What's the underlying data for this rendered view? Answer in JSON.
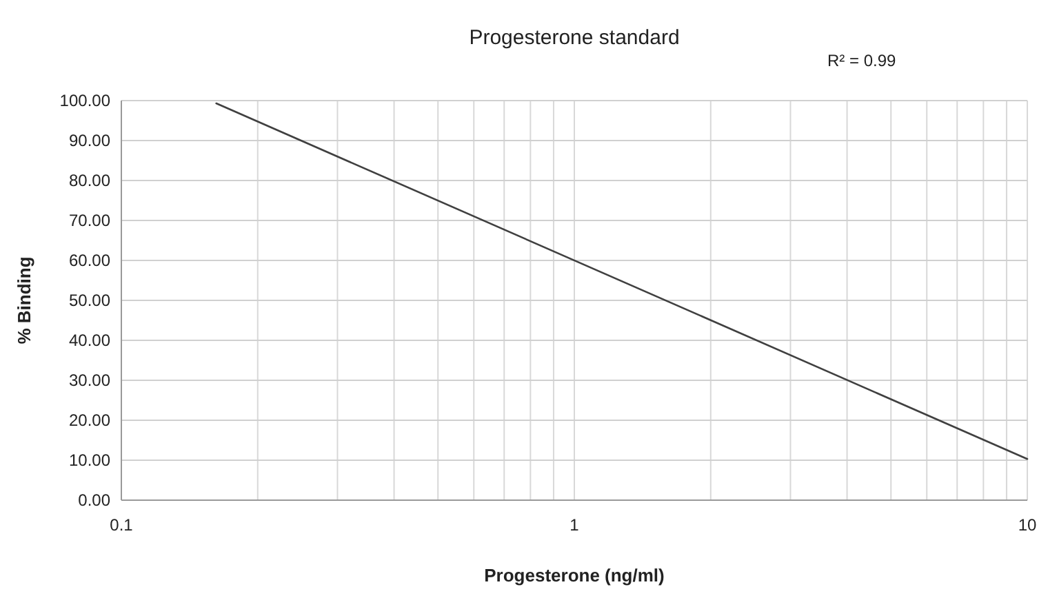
{
  "chart_data": {
    "type": "line",
    "title": "Progesterone standard",
    "xlabel": "Progesterone (ng/ml)",
    "ylabel": "% Binding",
    "annotations": [
      "R² = 0.99"
    ],
    "series": [
      {
        "color": "#404040",
        "x": [
          0.162,
          10
        ],
        "values": [
          99.3,
          10.3
        ]
      }
    ],
    "log": "x",
    "xlim": [
      0.1,
      10
    ],
    "ylim": [
      0,
      100
    ],
    "xticks": [
      0.1,
      {
        "value": 0.2,
        "label": null
      },
      {
        "value": 0.3,
        "label": null
      },
      {
        "value": 0.4,
        "label": null
      },
      {
        "value": 0.5,
        "label": null
      },
      {
        "value": 0.6,
        "label": null
      },
      {
        "value": 0.7,
        "label": null
      },
      {
        "value": 0.8,
        "label": null
      },
      {
        "value": 0.9,
        "label": null
      },
      1,
      {
        "value": 2,
        "label": null
      },
      {
        "value": 3,
        "label": null
      },
      {
        "value": 4,
        "label": null
      },
      {
        "value": 5,
        "label": null
      },
      {
        "value": 6,
        "label": null
      },
      {
        "value": 7,
        "label": null
      },
      {
        "value": 8,
        "label": null
      },
      {
        "value": 9,
        "label": null
      },
      10
    ],
    "yticks": [
      {
        "value": 0,
        "label": "0.00"
      },
      {
        "value": 10,
        "label": "10.00"
      },
      {
        "value": 20,
        "label": "20.00"
      },
      {
        "value": 30,
        "label": "30.00"
      },
      {
        "value": 40,
        "label": "40.00"
      },
      {
        "value": 50,
        "label": "50.00"
      },
      {
        "value": 60,
        "label": "60.00"
      },
      {
        "value": 70,
        "label": "70.00"
      },
      {
        "value": 80,
        "label": "80.00"
      },
      {
        "value": 90,
        "label": "90.00"
      },
      {
        "value": 100,
        "label": "100.00"
      }
    ],
    "grid": true,
    "marker": "none",
    "line_style": "solid"
  }
}
